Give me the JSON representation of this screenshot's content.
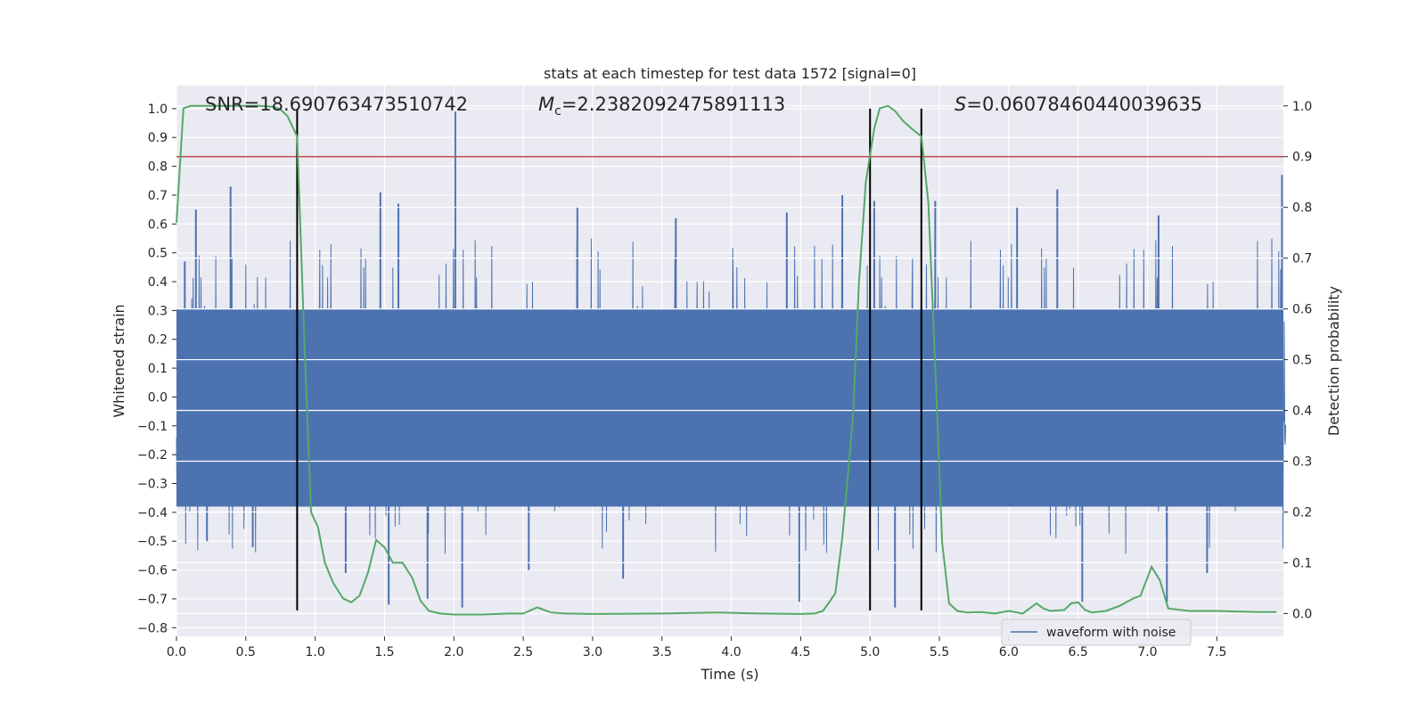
{
  "chart_data": {
    "type": "line",
    "title": "stats at each timestep for test data 1572 [signal=0]",
    "xlabel": "Time (s)",
    "ylabel": "Whitened strain",
    "y2label": "Detection probability",
    "xlim": [
      0.0,
      7.98
    ],
    "ylim": [
      -0.83,
      1.08
    ],
    "y2lim": [
      -0.045,
      1.04
    ],
    "xticks": [
      "0.0",
      "0.5",
      "1.0",
      "1.5",
      "2.0",
      "2.5",
      "3.0",
      "3.5",
      "4.0",
      "4.5",
      "5.0",
      "5.5",
      "6.0",
      "6.5",
      "7.0",
      "7.5"
    ],
    "yticks": [
      "1.0",
      "0.9",
      "0.8",
      "0.7",
      "0.6",
      "0.5",
      "0.4",
      "0.3",
      "0.2",
      "0.1",
      "0.0",
      "−0.1",
      "−0.2",
      "−0.3",
      "−0.4",
      "−0.5",
      "−0.6",
      "−0.7",
      "−0.8"
    ],
    "y2ticks": [
      "1.0",
      "0.9",
      "0.8",
      "0.7",
      "0.6",
      "0.5",
      "0.4",
      "0.3",
      "0.2",
      "0.1",
      "0.0"
    ],
    "annotations": {
      "snr": "SNR=18.690763473510742",
      "mc_symbol": "M",
      "mc_sub": "c",
      "mc_value": "=2.2382092475891113",
      "s_symbol": "S",
      "s_value": "=0.06078460440039635"
    },
    "legend": {
      "label": "waveform with noise",
      "position": "lower-right"
    },
    "threshold": {
      "y2": 0.9,
      "color": "#c44e52"
    },
    "vlines": {
      "x": [
        0.87,
        5.0,
        5.37
      ],
      "y_from": -0.74,
      "y_to": 1.0,
      "color": "#000000"
    },
    "waveform": {
      "name": "waveform with noise",
      "color": "#4c72b0",
      "duration_s": 8.0,
      "core_amplitude": 0.38,
      "peak_amplitude": 0.55,
      "spikes": [
        {
          "t": 0.06,
          "y": 0.47
        },
        {
          "t": 0.14,
          "y": 0.65
        },
        {
          "t": 0.22,
          "y": -0.5
        },
        {
          "t": 0.39,
          "y": 0.73
        },
        {
          "t": 0.55,
          "y": -0.52
        },
        {
          "t": 0.87,
          "y": -0.58
        },
        {
          "t": 1.22,
          "y": -0.61
        },
        {
          "t": 1.47,
          "y": 0.71
        },
        {
          "t": 1.53,
          "y": -0.72
        },
        {
          "t": 1.6,
          "y": 0.67
        },
        {
          "t": 1.81,
          "y": -0.7
        },
        {
          "t": 2.01,
          "y": 0.99
        },
        {
          "t": 2.06,
          "y": -0.73
        },
        {
          "t": 2.54,
          "y": -0.6
        },
        {
          "t": 2.89,
          "y": 0.66
        },
        {
          "t": 3.22,
          "y": -0.63
        },
        {
          "t": 3.6,
          "y": 0.62
        },
        {
          "t": 4.4,
          "y": 0.64
        },
        {
          "t": 4.49,
          "y": -0.71
        },
        {
          "t": 4.8,
          "y": 0.7
        },
        {
          "t": 5.03,
          "y": 0.68
        },
        {
          "t": 5.18,
          "y": -0.73
        },
        {
          "t": 5.47,
          "y": 0.68
        },
        {
          "t": 6.06,
          "y": 0.66
        },
        {
          "t": 6.35,
          "y": 0.72
        },
        {
          "t": 6.53,
          "y": -0.71
        },
        {
          "t": 7.08,
          "y": 0.63
        },
        {
          "t": 7.14,
          "y": -0.71
        },
        {
          "t": 7.43,
          "y": -0.61
        },
        {
          "t": 7.97,
          "y": 0.77
        }
      ]
    },
    "probability": {
      "name": "Detection probability",
      "color": "#55a868",
      "x": [
        0.0,
        0.05,
        0.1,
        0.2,
        0.3,
        0.4,
        0.5,
        0.6,
        0.7,
        0.75,
        0.8,
        0.87,
        0.92,
        0.97,
        1.02,
        1.07,
        1.13,
        1.2,
        1.26,
        1.32,
        1.38,
        1.44,
        1.5,
        1.56,
        1.63,
        1.7,
        1.76,
        1.82,
        1.9,
        2.0,
        2.2,
        2.4,
        2.5,
        2.6,
        2.7,
        2.8,
        3.0,
        3.5,
        3.9,
        4.2,
        4.5,
        4.6,
        4.66,
        4.7,
        4.75,
        4.8,
        4.85,
        4.88,
        4.92,
        4.97,
        5.03,
        5.07,
        5.13,
        5.18,
        5.24,
        5.3,
        5.37,
        5.42,
        5.47,
        5.52,
        5.57,
        5.63,
        5.7,
        5.8,
        5.9,
        6.0,
        6.1,
        6.2,
        6.25,
        6.3,
        6.4,
        6.45,
        6.5,
        6.55,
        6.6,
        6.7,
        6.8,
        6.9,
        6.95,
        7.03,
        7.09,
        7.15,
        7.3,
        7.5,
        7.8,
        7.93
      ],
      "y": [
        0.77,
        0.995,
        1.0,
        1.0,
        1.0,
        1.0,
        1.0,
        1.0,
        0.998,
        0.993,
        0.98,
        0.94,
        0.55,
        0.2,
        0.17,
        0.1,
        0.06,
        0.03,
        0.022,
        0.035,
        0.08,
        0.145,
        0.13,
        0.1,
        0.1,
        0.07,
        0.025,
        0.005,
        0.0,
        -0.002,
        -0.002,
        0.0,
        0.0,
        0.012,
        0.002,
        0.0,
        -0.001,
        0.0,
        0.002,
        0.0,
        -0.001,
        0.0,
        0.005,
        0.02,
        0.04,
        0.15,
        0.3,
        0.4,
        0.65,
        0.85,
        0.955,
        0.995,
        1.0,
        0.99,
        0.97,
        0.955,
        0.94,
        0.81,
        0.49,
        0.14,
        0.02,
        0.005,
        0.002,
        0.003,
        0.0,
        0.005,
        0.0,
        0.02,
        0.01,
        0.005,
        0.007,
        0.02,
        0.022,
        0.007,
        0.002,
        0.005,
        0.015,
        0.03,
        0.035,
        0.092,
        0.065,
        0.01,
        0.005,
        0.005,
        0.003,
        0.003
      ]
    }
  }
}
